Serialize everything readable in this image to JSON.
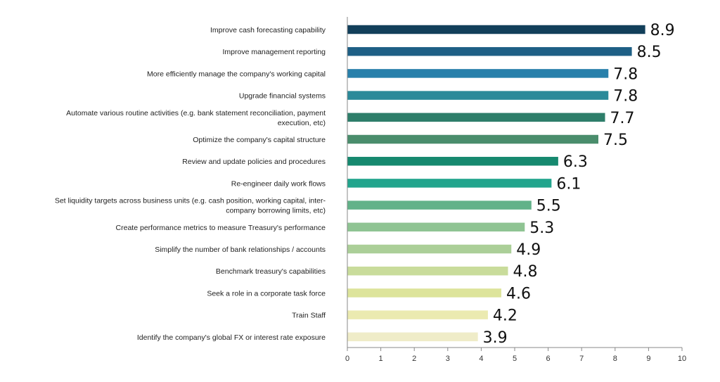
{
  "chart_data": {
    "type": "bar",
    "orientation": "horizontal",
    "title": "",
    "xlabel": "",
    "ylabel": "",
    "xlim": [
      0,
      10
    ],
    "x_ticks": [
      "0",
      "1",
      "2",
      "3",
      "4",
      "5",
      "6",
      "7",
      "8",
      "9",
      "10"
    ],
    "grid": false,
    "categories": [
      [
        "Improve cash forecasting capability"
      ],
      [
        "Improve management reporting"
      ],
      [
        "More efficiently manage the company's working capital"
      ],
      [
        "Upgrade financial systems"
      ],
      [
        "Automate various routine activities (e.g. bank statement reconciliation, payment",
        "execution, etc)"
      ],
      [
        "Optimize the company's capital structure"
      ],
      [
        "Review and update policies and procedures"
      ],
      [
        "Re-engineer daily work flows"
      ],
      [
        "Set liquidity targets across business units (e.g. cash position, working capital, inter-",
        "company borrowing limits, etc)"
      ],
      [
        "Create performance metrics to measure Treasury's performance"
      ],
      [
        "Simplify the number of bank relationships / accounts"
      ],
      [
        "Benchmark treasury's capabilities"
      ],
      [
        "Seek a role in a corporate task force"
      ],
      [
        "Train Staff"
      ],
      [
        "Identify the company's global FX or interest rate exposure"
      ]
    ],
    "values": [
      8.9,
      8.5,
      7.8,
      7.8,
      7.7,
      7.5,
      6.3,
      6.1,
      5.5,
      5.3,
      4.9,
      4.8,
      4.6,
      4.2,
      3.9
    ],
    "value_labels": [
      "8.9",
      "8.5",
      "7.8",
      "7.8",
      "7.7",
      "7.5",
      "6.3",
      "6.1",
      "5.5",
      "5.3",
      "4.9",
      "4.8",
      "4.6",
      "4.2",
      "3.9"
    ],
    "colors": [
      "#123f5a",
      "#1e5f85",
      "#2880ab",
      "#2b8a9a",
      "#2e7e6a",
      "#4a8d6c",
      "#16896f",
      "#22a58d",
      "#62b289",
      "#8fc493",
      "#abcf98",
      "#c9dc9b",
      "#dde49b",
      "#ebeab0",
      "#efecc8"
    ]
  }
}
